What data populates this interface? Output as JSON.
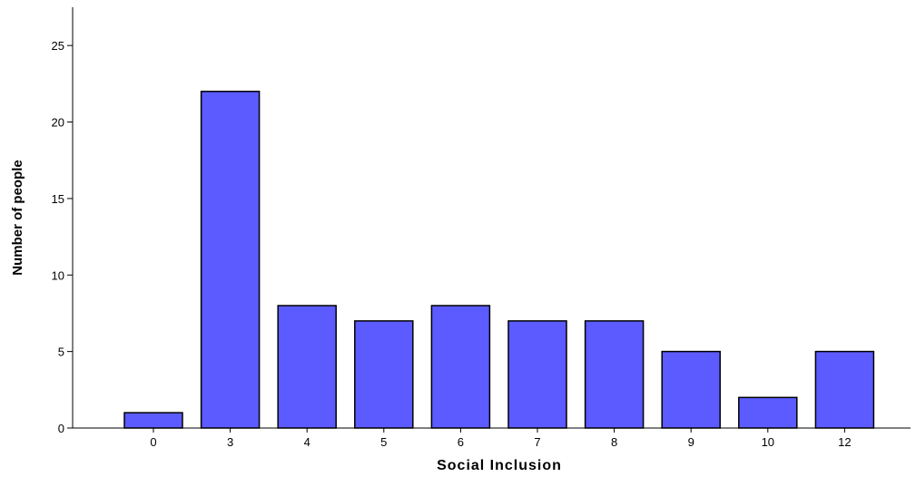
{
  "chart_data": {
    "type": "bar",
    "categories": [
      "0",
      "3",
      "4",
      "5",
      "6",
      "7",
      "8",
      "9",
      "10",
      "12"
    ],
    "values": [
      1,
      22,
      8,
      7,
      8,
      7,
      7,
      5,
      2,
      5
    ],
    "title": "",
    "xlabel": "Social Inclusion",
    "ylabel": "Number of people",
    "ylim": [
      0,
      27.5
    ],
    "yticks": [
      0,
      5,
      10,
      15,
      20,
      25
    ],
    "grid": false,
    "legend": "none",
    "bar_color": "#5b5bff",
    "bar_edge_color": "#000000"
  }
}
